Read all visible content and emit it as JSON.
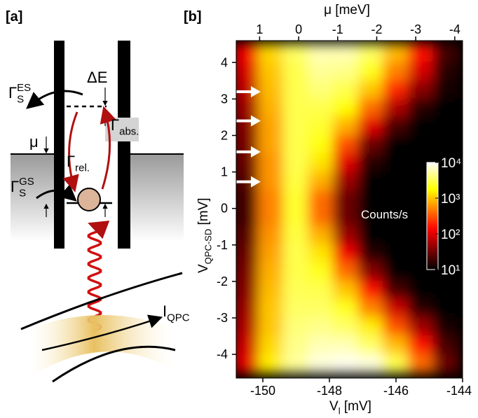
{
  "panel_a": {
    "label": "[a]",
    "gamma_es": {
      "base": "Γ",
      "sub": "S",
      "sup": "ES"
    },
    "delta_e": "ΔE",
    "mu": "μ",
    "gamma_rel": {
      "base": "Γ",
      "sub": "rel."
    },
    "gamma_abs": {
      "base": "Γ",
      "sub": "abs."
    },
    "gamma_gs": {
      "base": "Γ",
      "sub": "S",
      "sup": "GS"
    },
    "i_qpc": {
      "base": "I",
      "sub": "QPC"
    }
  },
  "chart_data": {
    "type": "heatmap",
    "panel": "[b]",
    "xlabel": {
      "base": "V",
      "sub": "l",
      "tail": "  [mV]"
    },
    "ylabel": {
      "base": "V",
      "sub": "QPC-SD",
      "tail": " [mV]"
    },
    "x2label": "μ [meV]",
    "annotation": "Counts/s",
    "xlim": [
      -150.8,
      -144
    ],
    "xticks": [
      -150,
      -148,
      -146,
      -144
    ],
    "x2lim": [
      1.6,
      -4.2
    ],
    "x2ticks": [
      1,
      0,
      -1,
      -2,
      -3,
      -4
    ],
    "ylim": [
      -4.65,
      4.6
    ],
    "yticks": [
      -4,
      -3,
      -2,
      -1,
      0,
      1,
      2,
      3,
      4
    ],
    "log_color": true,
    "colormap": "hot",
    "clim": [
      10,
      10000
    ],
    "cticks": [
      {
        "value": 10,
        "label": "10¹"
      },
      {
        "value": 100,
        "label": "10²"
      },
      {
        "value": 1000,
        "label": "10³"
      },
      {
        "value": 10000,
        "label": "10⁴"
      }
    ],
    "arrows_y": [
      3.2,
      2.4,
      1.55,
      0.73
    ],
    "x": [
      -150.5,
      -149.75,
      -149,
      -148.25,
      -147.5,
      -146.75,
      -146,
      -145.25,
      -144.5
    ],
    "y": [
      4.25,
      3.75,
      3.25,
      2.75,
      2.25,
      1.75,
      1.25,
      0.75,
      0.25,
      -0.25,
      -0.75,
      -1.25,
      -1.75,
      -2.25,
      -2.75,
      -3.25,
      -3.75,
      -4.25
    ],
    "z": [
      [
        120,
        1200,
        3500,
        6000,
        6000,
        3500,
        900,
        150,
        20
      ],
      [
        90,
        1000,
        3000,
        5000,
        4500,
        2200,
        500,
        90,
        15
      ],
      [
        70,
        900,
        3000,
        4000,
        3000,
        1000,
        200,
        40,
        12
      ],
      [
        50,
        800,
        3000,
        3000,
        1800,
        400,
        60,
        15,
        10
      ],
      [
        40,
        700,
        3000,
        2500,
        800,
        100,
        20,
        10,
        10
      ],
      [
        35,
        700,
        3000,
        2000,
        300,
        30,
        10,
        10,
        10
      ],
      [
        30,
        600,
        3000,
        1400,
        100,
        15,
        10,
        10,
        10
      ],
      [
        25,
        600,
        2800,
        800,
        50,
        10,
        10,
        10,
        10
      ],
      [
        20,
        500,
        2500,
        400,
        30,
        10,
        10,
        10,
        10
      ],
      [
        20,
        500,
        2500,
        400,
        30,
        10,
        10,
        10,
        10
      ],
      [
        25,
        600,
        2800,
        800,
        50,
        10,
        10,
        10,
        10
      ],
      [
        30,
        700,
        3000,
        1400,
        120,
        15,
        10,
        10,
        10
      ],
      [
        35,
        800,
        3000,
        2200,
        400,
        40,
        10,
        10,
        10
      ],
      [
        40,
        900,
        3200,
        3000,
        1000,
        150,
        20,
        10,
        10
      ],
      [
        50,
        1000,
        3500,
        3500,
        2200,
        500,
        80,
        15,
        10
      ],
      [
        60,
        1000,
        4000,
        4500,
        3500,
        1500,
        300,
        50,
        12
      ],
      [
        80,
        1200,
        4500,
        6000,
        6000,
        3500,
        900,
        150,
        20
      ],
      [
        100,
        1500,
        5000,
        8000,
        9000,
        8000,
        3000,
        400,
        30
      ]
    ]
  }
}
